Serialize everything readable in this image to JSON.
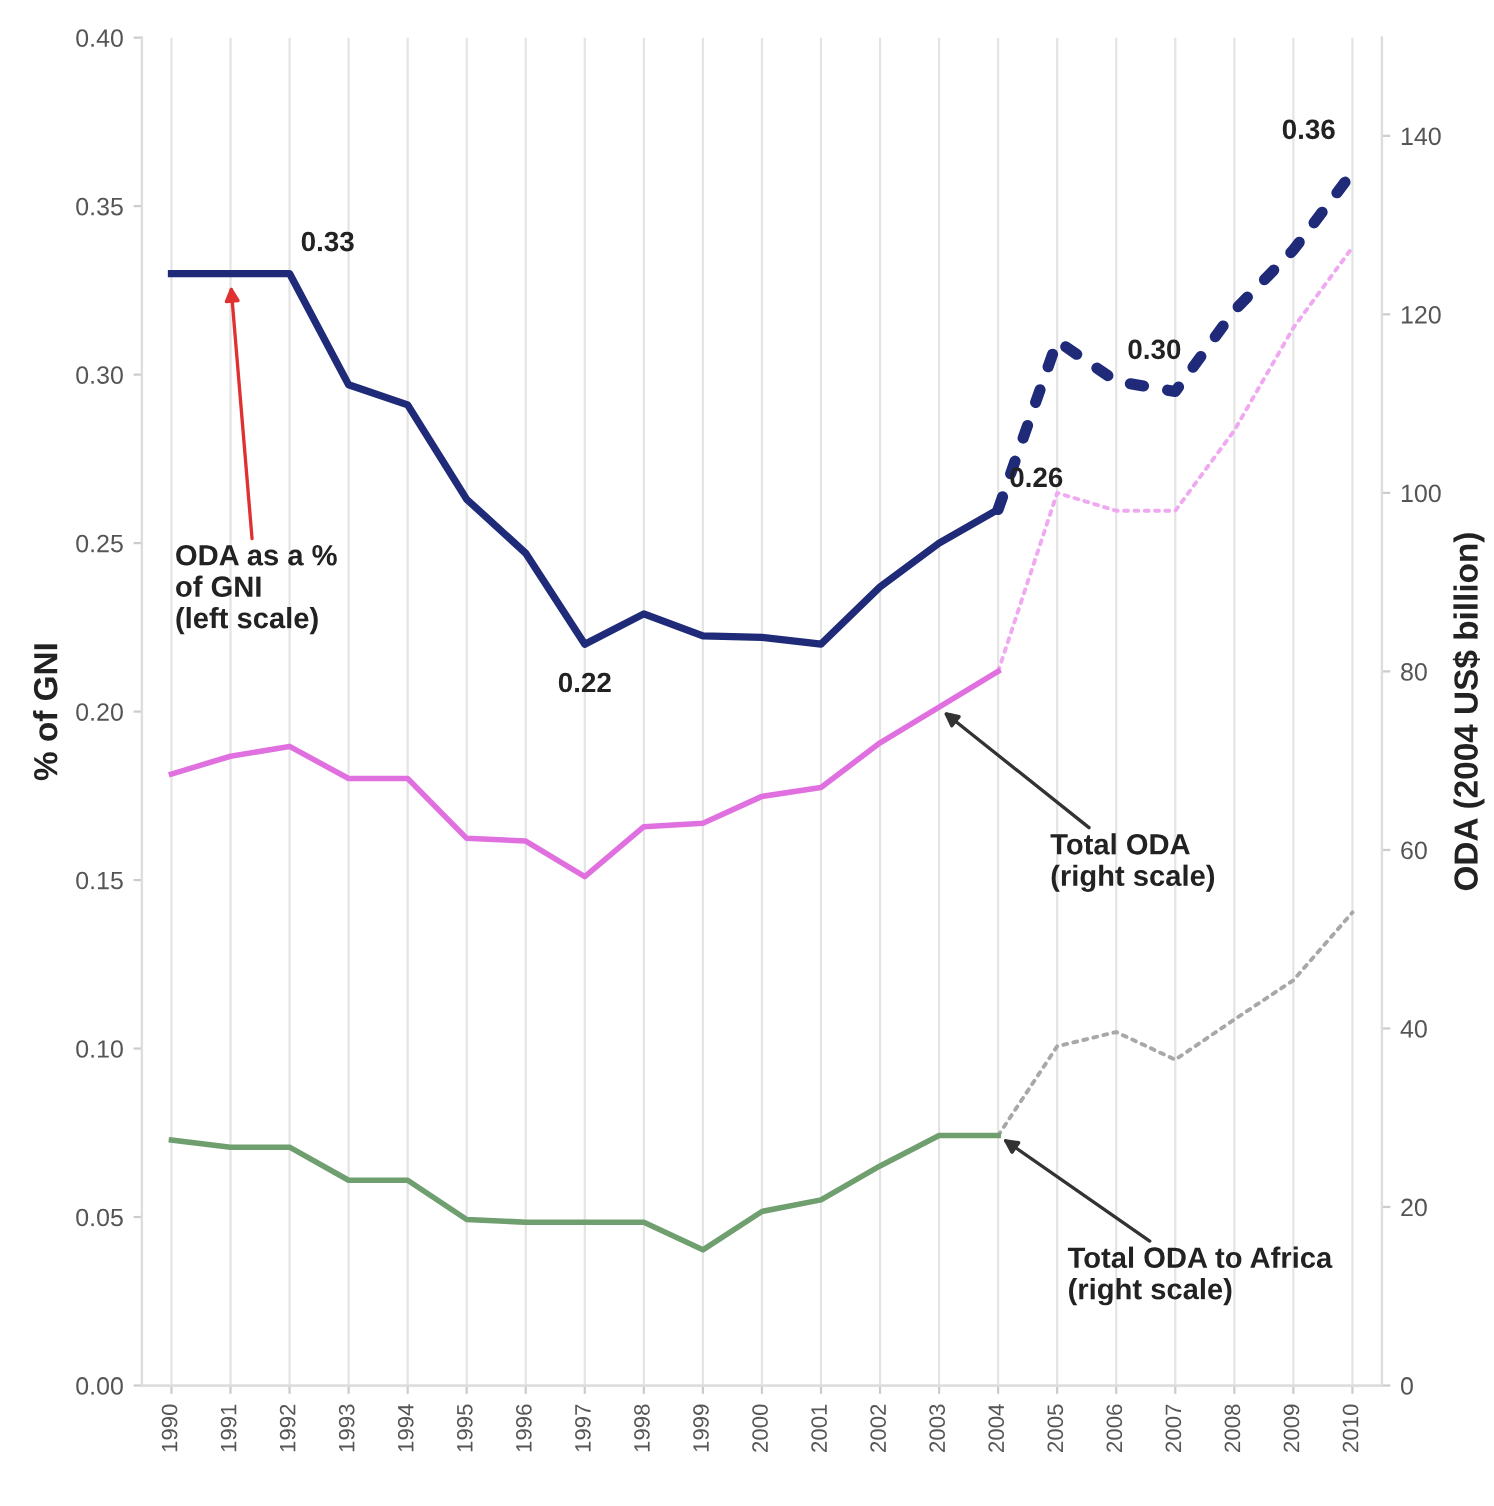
{
  "chart_data": {
    "type": "line",
    "ylabel": "% of GNI",
    "y2label": "ODA (2004 US$ billion)",
    "categories": [
      "1990",
      "1991",
      "1992",
      "1993",
      "1994",
      "1995",
      "1996",
      "1997",
      "1998",
      "1999",
      "2000",
      "2001",
      "2002",
      "2003",
      "2004",
      "2005",
      "2006",
      "2007",
      "2008",
      "2009",
      "2010"
    ],
    "series": [
      {
        "color": "#f0a8f0",
        "axis": "y2",
        "line_style": "dotted",
        "values": [
          null,
          null,
          null,
          null,
          null,
          null,
          null,
          null,
          null,
          null,
          null,
          null,
          null,
          null,
          80,
          100,
          98,
          98,
          107,
          118.5,
          127.5
        ]
      },
      {
        "color": "#e070e0",
        "axis": "y2",
        "line_style": "solid",
        "values": [
          68.5,
          70.5,
          71.6,
          68,
          68,
          61.3,
          61,
          57,
          62.6,
          63,
          66,
          67,
          72,
          76,
          80,
          null,
          null,
          null,
          null,
          null,
          null
        ]
      },
      {
        "color": "#a8a8a8",
        "axis": "y2",
        "line_style": "dotted",
        "values": [
          null,
          null,
          null,
          null,
          null,
          null,
          null,
          null,
          null,
          null,
          null,
          null,
          null,
          null,
          28,
          38,
          39.6,
          36.5,
          41,
          45.4,
          53
        ]
      },
      {
        "color": "#6f9f6f",
        "axis": "y2",
        "line_style": "solid",
        "values": [
          27.5,
          26.7,
          26.7,
          23,
          23,
          18.6,
          18.3,
          18.3,
          18.3,
          15.2,
          19.5,
          20.8,
          24.6,
          28,
          28,
          null,
          null,
          null,
          null,
          null,
          null
        ]
      },
      {
        "color": "#1f2a78",
        "line_style": "solid",
        "values": [
          0.33,
          0.33,
          0.33,
          0.297,
          0.291,
          0.263,
          0.247,
          0.22,
          0.229,
          0.2225,
          0.222,
          0.22,
          0.237,
          0.25,
          0.26,
          null,
          null,
          null,
          null,
          null,
          null
        ],
        "value_labels": [
          null,
          null,
          "0.33",
          null,
          null,
          null,
          null,
          "0.22",
          null,
          null,
          null,
          null,
          null,
          null,
          "0.26",
          null,
          null,
          null,
          null,
          null,
          null
        ]
      },
      {
        "color": "#1f2a78",
        "line_style": "dashed",
        "values": [
          null,
          null,
          null,
          null,
          null,
          null,
          null,
          null,
          null,
          null,
          null,
          null,
          null,
          null,
          0.26,
          0.31,
          0.298,
          0.295,
          0.319,
          0.337,
          0.36
        ],
        "value_labels": [
          null,
          null,
          null,
          null,
          null,
          null,
          null,
          null,
          null,
          null,
          null,
          null,
          null,
          null,
          null,
          null,
          "0.30",
          null,
          null,
          null,
          "0.36"
        ]
      }
    ],
    "annotations": [
      {
        "text": "ODA as a %\nof GNI\n(left scale)",
        "x": "1991",
        "y": 0.328
      },
      {
        "text": "Total ODA\n(right scale)",
        "x": "2003",
        "y": 0.201
      },
      {
        "text": "Total ODA to Africa\n(right scale)",
        "x": "2004",
        "y": 0.0742
      }
    ],
    "ylim": [
      0,
      0.4
    ],
    "yticks": [
      {
        "value": 0,
        "label": "0.00"
      },
      {
        "value": 0.05,
        "label": "0.05"
      },
      {
        "value": 0.1,
        "label": "0.10"
      },
      {
        "value": 0.15,
        "label": "0.15"
      },
      {
        "value": 0.2,
        "label": "0.20"
      },
      {
        "value": 0.25,
        "label": "0.25"
      },
      {
        "value": 0.3,
        "label": "0.30"
      },
      {
        "value": 0.35,
        "label": "0.35"
      },
      {
        "value": 0.4,
        "label": "0.40"
      }
    ],
    "y2lim": [
      0,
      151
    ],
    "y2ticks": [
      0,
      20,
      40,
      60,
      80,
      100,
      120,
      140
    ],
    "grid": "x",
    "marker": "none"
  }
}
